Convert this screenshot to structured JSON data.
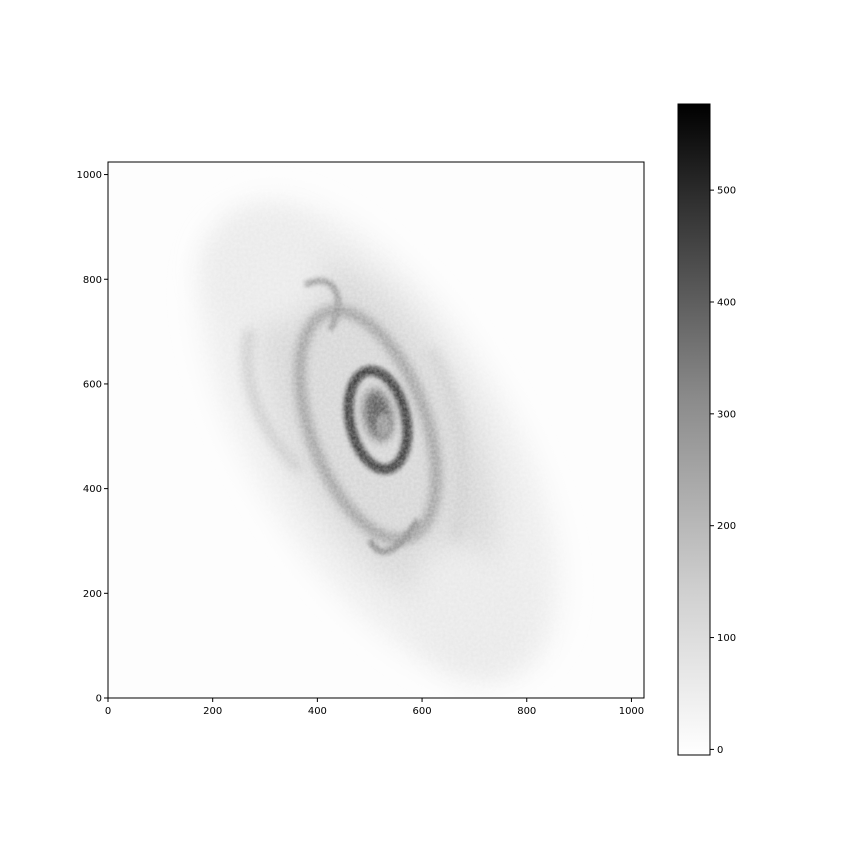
{
  "chart_data": [
    {
      "type": "heatmap",
      "title": "",
      "xlabel": "",
      "ylabel": "",
      "xlim": [
        0,
        1024
      ],
      "ylim": [
        0,
        1024
      ],
      "x_ticks": [
        "0",
        "200",
        "400",
        "600",
        "800",
        "1000"
      ],
      "y_ticks": [
        "0",
        "200",
        "400",
        "600",
        "800",
        "1000"
      ],
      "colormap": "gray_r",
      "grid": false,
      "content": "grayscale image of a spiral galaxy, elongated along a tilted axis, centered near (520, 540)"
    },
    {
      "type": "colorbar",
      "range": [
        -5,
        577
      ],
      "ticks": [
        "0",
        "100",
        "200",
        "300",
        "400",
        "500"
      ],
      "colormap": "gray_r",
      "low_color": "#ffffff",
      "high_color": "#000000"
    }
  ]
}
